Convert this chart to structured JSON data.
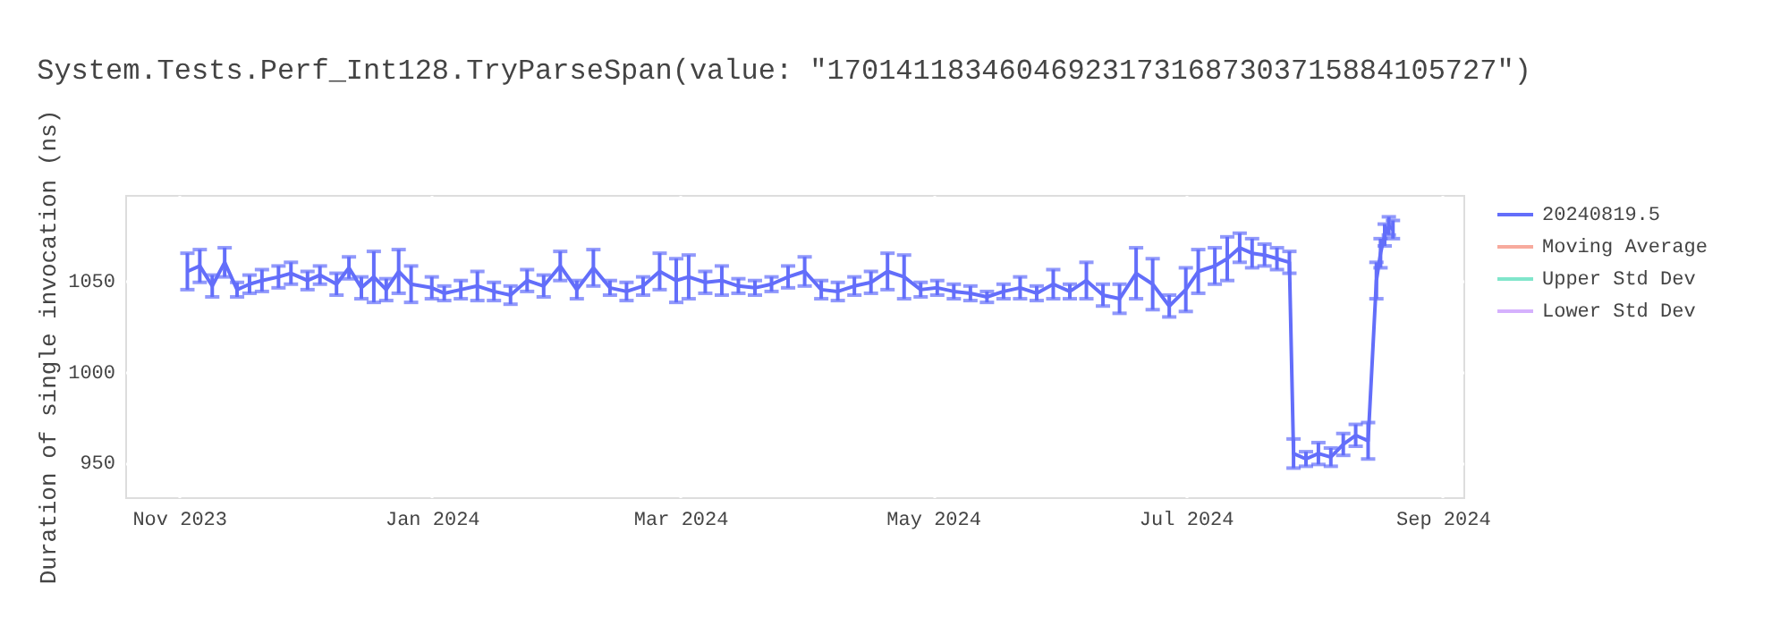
{
  "chart_data": {
    "type": "line",
    "title": "System.Tests.Perf_Int128.TryParseSpan(value: \"170141183460469231731687303715884105727\")",
    "ylabel": "Duration of single invocation (ns)",
    "x": [
      "2023-11-03",
      "2023-11-06",
      "2023-11-09",
      "2023-11-12",
      "2023-11-15",
      "2023-11-18",
      "2023-11-21",
      "2023-11-25",
      "2023-11-28",
      "2023-12-02",
      "2023-12-05",
      "2023-12-09",
      "2023-12-12",
      "2023-12-15",
      "2023-12-18",
      "2023-12-21",
      "2023-12-24",
      "2023-12-27",
      "2024-01-01",
      "2024-01-04",
      "2024-01-08",
      "2024-01-12",
      "2024-01-16",
      "2024-01-20",
      "2024-01-24",
      "2024-01-28",
      "2024-02-01",
      "2024-02-05",
      "2024-02-09",
      "2024-02-13",
      "2024-02-17",
      "2024-02-21",
      "2024-02-25",
      "2024-02-29",
      "2024-03-03",
      "2024-03-07",
      "2024-03-11",
      "2024-03-15",
      "2024-03-19",
      "2024-03-23",
      "2024-03-27",
      "2024-03-31",
      "2024-04-04",
      "2024-04-08",
      "2024-04-12",
      "2024-04-16",
      "2024-04-20",
      "2024-04-24",
      "2024-04-28",
      "2024-05-02",
      "2024-05-06",
      "2024-05-10",
      "2024-05-14",
      "2024-05-18",
      "2024-05-22",
      "2024-05-26",
      "2024-05-30",
      "2024-06-03",
      "2024-06-07",
      "2024-06-11",
      "2024-06-15",
      "2024-06-19",
      "2024-06-23",
      "2024-06-27",
      "2024-07-01",
      "2024-07-04",
      "2024-07-08",
      "2024-07-11",
      "2024-07-14",
      "2024-07-17",
      "2024-07-20",
      "2024-07-23",
      "2024-07-26",
      "2024-07-27",
      "2024-07-30",
      "2024-08-02",
      "2024-08-05",
      "2024-08-08",
      "2024-08-11",
      "2024-08-14",
      "2024-08-16",
      "2024-08-17",
      "2024-08-18",
      "2024-08-19",
      "2024-08-20"
    ],
    "series": [
      {
        "name": "20240819.5",
        "color": "#636efa",
        "values": [
          1055,
          1058,
          1047,
          1060,
          1045,
          1048,
          1050,
          1052,
          1054,
          1050,
          1053,
          1048,
          1057,
          1046,
          1052,
          1045,
          1055,
          1048,
          1046,
          1043,
          1045,
          1047,
          1044,
          1042,
          1050,
          1047,
          1058,
          1045,
          1057,
          1046,
          1044,
          1047,
          1055,
          1050,
          1052,
          1049,
          1050,
          1047,
          1046,
          1048,
          1052,
          1055,
          1045,
          1044,
          1047,
          1049,
          1055,
          1052,
          1045,
          1046,
          1044,
          1043,
          1041,
          1044,
          1046,
          1043,
          1048,
          1044,
          1050,
          1042,
          1040,
          1054,
          1048,
          1036,
          1045,
          1055,
          1058,
          1062,
          1068,
          1065,
          1064,
          1062,
          1060,
          955,
          952,
          955,
          953,
          960,
          965,
          962,
          1050,
          1065,
          1075,
          1080,
          1078
        ],
        "errors": [
          10,
          9,
          6,
          8,
          4,
          5,
          6,
          6,
          6,
          5,
          5,
          6,
          6,
          6,
          14,
          6,
          12,
          10,
          6,
          4,
          5,
          8,
          5,
          5,
          6,
          6,
          8,
          5,
          10,
          4,
          5,
          5,
          10,
          12,
          12,
          6,
          8,
          4,
          4,
          4,
          6,
          8,
          5,
          5,
          5,
          6,
          10,
          12,
          4,
          4,
          4,
          4,
          3,
          4,
          6,
          4,
          8,
          4,
          10,
          6,
          8,
          14,
          14,
          6,
          12,
          12,
          10,
          12,
          8,
          8,
          6,
          6,
          6,
          8,
          4,
          6,
          5,
          6,
          6,
          10,
          10,
          8,
          6,
          5,
          5
        ]
      },
      {
        "name": "Moving Average",
        "color": "#f7aa9d",
        "values": [
          null,
          null,
          null,
          null,
          null,
          null,
          null,
          null,
          null,
          null,
          null,
          null,
          null,
          null,
          null,
          null,
          null,
          null,
          null,
          null,
          null,
          null,
          null,
          null,
          null,
          null,
          null,
          null,
          null,
          null,
          null,
          null,
          null,
          null,
          null,
          null,
          null,
          null,
          null,
          null,
          null,
          null,
          null,
          null,
          null,
          null,
          null,
          null,
          null,
          null,
          null,
          null,
          null,
          null,
          null,
          null,
          null,
          null,
          null,
          null,
          null,
          null,
          null,
          null,
          null,
          null,
          null,
          null,
          null,
          null,
          null,
          null,
          null,
          null,
          null,
          null,
          null,
          null,
          null,
          null,
          null,
          null,
          null,
          null,
          null
        ]
      },
      {
        "name": "Upper Std Dev",
        "color": "#80e6cb",
        "values": [
          null,
          null,
          null,
          null,
          null,
          null,
          null,
          null,
          null,
          null,
          null,
          null,
          null,
          null,
          null,
          null,
          null,
          null,
          null,
          null,
          null,
          null,
          null,
          null,
          null,
          null,
          null,
          null,
          null,
          null,
          null,
          null,
          null,
          null,
          null,
          null,
          null,
          null,
          null,
          null,
          null,
          null,
          null,
          null,
          null,
          null,
          null,
          null,
          null,
          null,
          null,
          null,
          null,
          null,
          null,
          null,
          null,
          null,
          null,
          null,
          null,
          null,
          null,
          null,
          null,
          null,
          null,
          null,
          null,
          null,
          null,
          null,
          null,
          null,
          null,
          null,
          null,
          null,
          null,
          null,
          null,
          null,
          null,
          null,
          null
        ]
      },
      {
        "name": "Lower Std Dev",
        "color": "#d5b1fd",
        "values": [
          null,
          null,
          null,
          null,
          null,
          null,
          null,
          null,
          null,
          null,
          null,
          null,
          null,
          null,
          null,
          null,
          null,
          null,
          null,
          null,
          null,
          null,
          null,
          null,
          null,
          null,
          null,
          null,
          null,
          null,
          null,
          null,
          null,
          null,
          null,
          null,
          null,
          null,
          null,
          null,
          null,
          null,
          null,
          null,
          null,
          null,
          null,
          null,
          null,
          null,
          null,
          null,
          null,
          null,
          null,
          null,
          null,
          null,
          null,
          null,
          null,
          null,
          null,
          null,
          null,
          null,
          null,
          null,
          null,
          null,
          null,
          null,
          null,
          null,
          null,
          null,
          null,
          null,
          null,
          null,
          null,
          null,
          null,
          null,
          null
        ]
      }
    ],
    "xlim": [
      "2023-10-19",
      "2024-09-06"
    ],
    "xticks": [
      {
        "value": "2023-11-01",
        "label": "Nov 2023"
      },
      {
        "value": "2024-01-01",
        "label": "Jan 2024"
      },
      {
        "value": "2024-03-01",
        "label": "Mar 2024"
      },
      {
        "value": "2024-05-01",
        "label": "May 2024"
      },
      {
        "value": "2024-07-01",
        "label": "Jul 2024"
      },
      {
        "value": "2024-09-01",
        "label": "Sep 2024"
      }
    ],
    "ylim": [
      931,
      1097
    ],
    "yticks": [
      950,
      1000,
      1050
    ],
    "grid": true,
    "legend": "top right",
    "marker": "none",
    "line_style": "solid"
  }
}
